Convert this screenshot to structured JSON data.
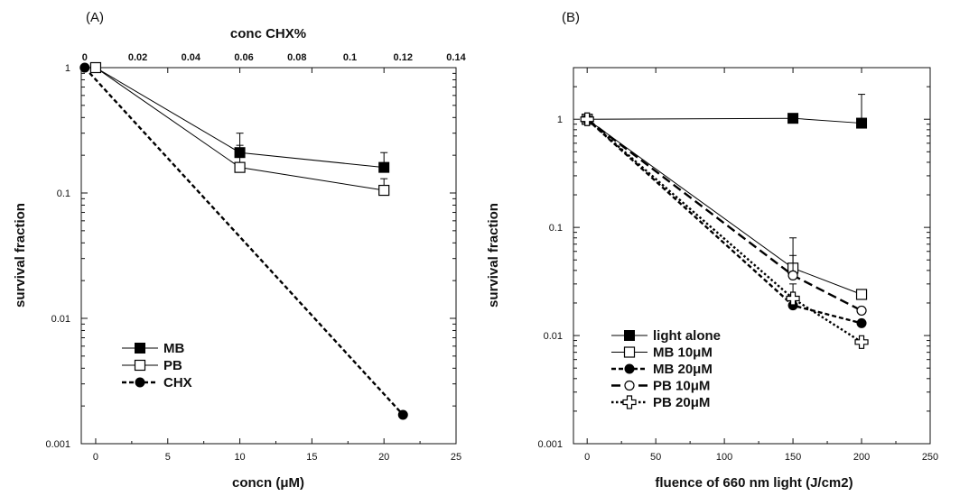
{
  "chart_data": [
    {
      "type": "line",
      "panel_label": "(A)",
      "xlabel": "concn (μM)",
      "ylabel": "survival fraction",
      "top_xlabel": "conc CHX%",
      "yscale": "log",
      "xlim": [
        -1,
        25
      ],
      "ylim": [
        0.001,
        1
      ],
      "top_xlim": [
        -0.0013,
        0.14
      ],
      "x_ticks": [
        "0",
        "5",
        "10",
        "15",
        "20",
        "25"
      ],
      "top_x_ticks": [
        "0",
        "0.02",
        "0.04",
        "0.06",
        "0.08",
        "0.1",
        "0.12",
        "0.14"
      ],
      "y_ticks": [
        "1",
        "0.1",
        "0.01",
        "0.001"
      ],
      "grid": false,
      "legend_position": "bottom-left",
      "series": [
        {
          "name": "MB",
          "marker": "filled-square",
          "line": "solid",
          "x": [
            0,
            10,
            20
          ],
          "y": [
            1,
            0.21,
            0.16
          ],
          "err_up": [
            null,
            0.3,
            0.21
          ]
        },
        {
          "name": "PB",
          "marker": "open-square",
          "line": "solid",
          "x": [
            0,
            10,
            20
          ],
          "y": [
            1,
            0.16,
            0.105
          ],
          "err_up": [
            null,
            0.24,
            0.13
          ]
        },
        {
          "name": "CHX",
          "marker": "filled-circle",
          "line": "dashed",
          "top_axis": true,
          "x": [
            0,
            0.12
          ],
          "y": [
            1,
            0.0017
          ]
        }
      ]
    },
    {
      "type": "line",
      "panel_label": "(B)",
      "xlabel": "fluence of 660 nm light (J/cm2)",
      "ylabel": "survival fraction",
      "yscale": "log",
      "xlim": [
        -10,
        250
      ],
      "ylim": [
        0.001,
        3
      ],
      "x_ticks": [
        "0",
        "50",
        "100",
        "150",
        "200",
        "250"
      ],
      "y_ticks": [
        "1",
        "0.1",
        "0.01",
        "0.001"
      ],
      "grid": false,
      "legend_position": "bottom-left",
      "series": [
        {
          "name": "light alone",
          "marker": "filled-square",
          "line": "solid",
          "x": [
            0,
            150,
            200
          ],
          "y": [
            1,
            1.02,
            0.92
          ],
          "err_up": [
            null,
            null,
            1.7
          ]
        },
        {
          "name": "MB 10μM",
          "marker": "open-square",
          "line": "solid",
          "x": [
            0,
            150,
            200
          ],
          "y": [
            1,
            0.042,
            0.024
          ],
          "err_up": [
            null,
            0.08,
            null
          ]
        },
        {
          "name": "MB 20μM",
          "marker": "filled-circle",
          "line": "dashed",
          "x": [
            0,
            150,
            200
          ],
          "y": [
            1,
            0.019,
            0.013
          ]
        },
        {
          "name": "PB 10μM",
          "marker": "open-circle",
          "line": "long-dashed",
          "x": [
            0,
            150,
            200
          ],
          "y": [
            1,
            0.036,
            0.017
          ],
          "err_up": [
            null,
            0.055,
            null
          ]
        },
        {
          "name": "PB 20μM",
          "marker": "open-cross",
          "line": "dotted",
          "x": [
            0,
            150,
            200
          ],
          "y": [
            1,
            0.022,
            0.0087
          ],
          "err_up": [
            null,
            0.03,
            null
          ]
        }
      ]
    }
  ]
}
